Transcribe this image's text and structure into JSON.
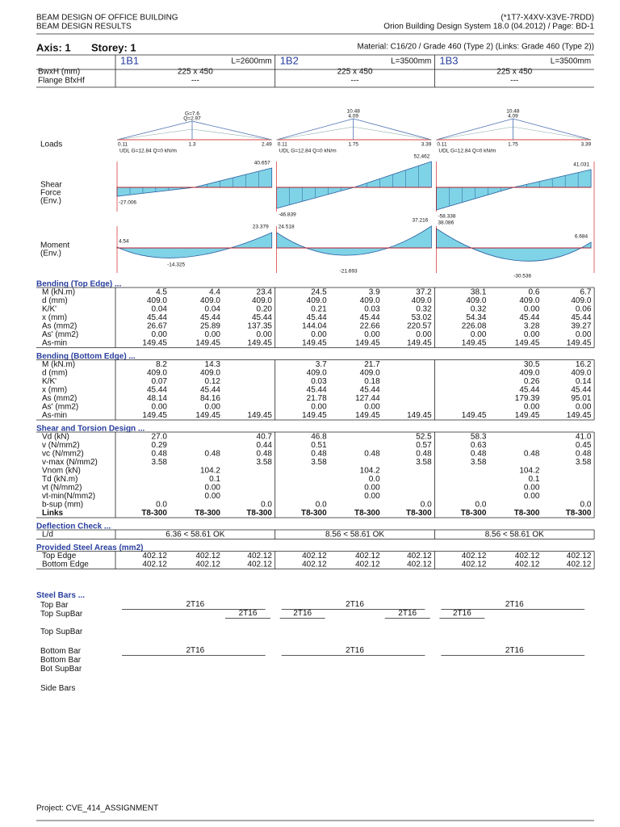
{
  "header": {
    "left": [
      "BEAM DESIGN OF OFFICE BUILDING",
      "BEAM DESIGN RESULTS"
    ],
    "right": [
      "(*1T7-X4XV-X3VE-7RDD)",
      "Orion Building Design System 18.0 (04.2012) / Page: BD-1"
    ]
  },
  "axis": "Axis: 1",
  "storey": "Storey: 1",
  "material": "Material: C16/20 / Grade 460 (Type 2) (Links: Grade 460 (Type 2))",
  "props": {
    "labels": [
      "BwxH (mm)",
      "Flange BfxHf"
    ]
  },
  "beams": [
    {
      "name": "1B1",
      "length": "L=2600mm",
      "size": "225 x 450",
      "flange": "---",
      "loads": [
        "0.11",
        "1.3",
        "2.49",
        "G=7.6",
        "Q=2.97"
      ],
      "udl": "UDL  G=12.84  Q=0 kN/m",
      "shear": [
        "-27.006",
        "40.657"
      ],
      "moment": [
        "4.54",
        "-14.325",
        "23.379"
      ]
    },
    {
      "name": "1B2",
      "length": "L=3500mm",
      "size": "225 x 450",
      "flange": "---",
      "loads": [
        "0.11",
        "1.75",
        "3.39",
        "10.48",
        "4.09"
      ],
      "udl": "UDL  G=12.84  Q=0 kN/m",
      "shear": [
        "-46.839",
        "52.462"
      ],
      "moment": [
        "24.518",
        "-21.693",
        "37.216"
      ]
    },
    {
      "name": "1B3",
      "length": "L=3500mm",
      "size": "225 x 450",
      "flange": "---",
      "loads": [
        "0.11",
        "1.75",
        "3.39",
        "10.48",
        "4.09"
      ],
      "udl": "UDL  G=12.84  Q=0 kN/m",
      "shear": [
        "-58.338",
        "41.031"
      ],
      "moment": [
        "38.086",
        "-30.536",
        "6.684"
      ]
    }
  ],
  "diagram_labels": [
    "Loads",
    "Shear",
    "Force",
    "(Env.)",
    "Moment",
    "(Env.)"
  ],
  "sections": [
    {
      "title": "Bending (Top Edge) ...",
      "rows": [
        {
          "label": "M (kN.m)",
          "cells": [
            "4.5",
            "4.4",
            "23.4",
            "24.5",
            "3.9",
            "37.2",
            "38.1",
            "0.6",
            "6.7"
          ]
        },
        {
          "label": "d  (mm)",
          "cells": [
            "409.0",
            "409.0",
            "409.0",
            "409.0",
            "409.0",
            "409.0",
            "409.0",
            "409.0",
            "409.0"
          ]
        },
        {
          "label": "K/K'",
          "cells": [
            "0.04",
            "0.04",
            "0.20",
            "0.21",
            "0.03",
            "0.32",
            "0.32",
            "0.00",
            "0.06"
          ]
        },
        {
          "label": "x  (mm)",
          "cells": [
            "45.44",
            "45.44",
            "45.44",
            "45.44",
            "45.44",
            "53.02",
            "54.34",
            "45.44",
            "45.44"
          ]
        },
        {
          "label": "As  (mm2)",
          "cells": [
            "26.67",
            "25.89",
            "137.35",
            "144.04",
            "22.66",
            "220.57",
            "226.08",
            "3.28",
            "39.27"
          ]
        },
        {
          "label": "As' (mm2)",
          "cells": [
            "0.00",
            "0.00",
            "0.00",
            "0.00",
            "0.00",
            "0.00",
            "0.00",
            "0.00",
            "0.00"
          ]
        },
        {
          "label": "As-min",
          "cells": [
            "149.45",
            "149.45",
            "149.45",
            "149.45",
            "149.45",
            "149.45",
            "149.45",
            "149.45",
            "149.45"
          ]
        }
      ]
    },
    {
      "title": "Bending (Bottom Edge) ...",
      "rows": [
        {
          "label": "M (kN.m)",
          "cells": [
            "8.2",
            "14.3",
            null,
            "3.7",
            "21.7",
            null,
            null,
            "30.5",
            "16.2"
          ]
        },
        {
          "label": "d  (mm)",
          "cells": [
            "409.0",
            "409.0",
            null,
            "409.0",
            "409.0",
            null,
            null,
            "409.0",
            "409.0"
          ]
        },
        {
          "label": "K/K'",
          "cells": [
            "0.07",
            "0.12",
            null,
            "0.03",
            "0.18",
            null,
            null,
            "0.26",
            "0.14"
          ]
        },
        {
          "label": "x  (mm)",
          "cells": [
            "45.44",
            "45.44",
            null,
            "45.44",
            "45.44",
            null,
            null,
            "45.44",
            "45.44"
          ]
        },
        {
          "label": "As  (mm2)",
          "cells": [
            "48.14",
            "84.16",
            null,
            "21.78",
            "127.44",
            null,
            null,
            "179.39",
            "95.01"
          ]
        },
        {
          "label": "As' (mm2)",
          "cells": [
            "0.00",
            "0.00",
            null,
            "0.00",
            "0.00",
            null,
            null,
            "0.00",
            "0.00"
          ]
        },
        {
          "label": "As-min",
          "cells": [
            "149.45",
            "149.45",
            "149.45",
            "149.45",
            "149.45",
            "149.45",
            "149.45",
            "149.45",
            "149.45"
          ]
        }
      ]
    },
    {
      "title": "Shear and Torsion Design ...",
      "rows": [
        {
          "label": "Vd  (kN)",
          "cells": [
            "27.0",
            null,
            "40.7",
            "46.8",
            null,
            "52.5",
            "58.3",
            null,
            "41.0"
          ]
        },
        {
          "label": "v  (N/mm2)",
          "cells": [
            "0.29",
            null,
            "0.44",
            "0.51",
            null,
            "0.57",
            "0.63",
            null,
            "0.45"
          ]
        },
        {
          "label": "vc  (N/mm2)",
          "cells": [
            "0.48",
            "0.48",
            "0.48",
            "0.48",
            "0.48",
            "0.48",
            "0.48",
            "0.48",
            "0.48"
          ]
        },
        {
          "label": "v-max (N/mm2)",
          "cells": [
            "3.58",
            null,
            "3.58",
            "3.58",
            null,
            "3.58",
            "3.58",
            null,
            "3.58"
          ]
        },
        {
          "label": "Vnom (kN)",
          "cells": [
            null,
            "104.2",
            null,
            null,
            "104.2",
            null,
            null,
            "104.2",
            null
          ]
        },
        {
          "label": "Td  (kN.m)",
          "cells": [
            null,
            "0.1",
            null,
            null,
            "0.0",
            null,
            null,
            "0.1",
            null
          ]
        },
        {
          "label": "vt  (N/mm2)",
          "cells": [
            null,
            "0.00",
            null,
            null,
            "0.00",
            null,
            null,
            "0.00",
            null
          ]
        },
        {
          "label": "vt-min(N/mm2)",
          "cells": [
            null,
            "0.00",
            null,
            null,
            "0.00",
            null,
            null,
            "0.00",
            null
          ]
        },
        {
          "label": "b-sup (mm)",
          "cells": [
            "0.0",
            null,
            "0.0",
            "0.0",
            null,
            "0.0",
            "0.0",
            null,
            "0.0"
          ]
        },
        {
          "label": "Links",
          "bold": true,
          "cells": [
            "T8-300",
            "T8-300",
            "T8-300",
            "T8-300",
            "T8-300",
            "T8-300",
            "T8-300",
            "T8-300",
            "T8-300"
          ]
        }
      ]
    },
    {
      "title": "Deflection Check ...",
      "rows": [
        {
          "label": "L/d",
          "cells": [
            "6.36 < 58.61 OK",
            "8.56 < 58.61 OK",
            "8.56 < 58.61 OK"
          ]
        }
      ]
    },
    {
      "title": "Provided Steel Areas (mm2)",
      "rows": [
        {
          "label": "Top Edge",
          "cells": [
            "402.12",
            "402.12",
            "402.12",
            "402.12",
            "402.12",
            "402.12",
            "402.12",
            "402.12",
            "402.12"
          ]
        },
        {
          "label": "Bottom Edge",
          "cells": [
            "402.12",
            "402.12",
            "402.12",
            "402.12",
            "402.12",
            "402.12",
            "402.12",
            "402.12",
            "402.12"
          ]
        }
      ]
    }
  ],
  "steel_bars": {
    "title": "Steel Bars ...",
    "rows": [
      {
        "label": "Top Bar",
        "cells": [
          "2T16",
          "2T16",
          "2T16"
        ]
      },
      {
        "label": "Top SupBar",
        "cells": [
          null,
          null,
          "2T16",
          "2T16",
          null,
          "2T16",
          "2T16",
          null,
          null
        ]
      },
      {
        "label": "Top SupBar"
      },
      {
        "label": "Bottom Bar",
        "cells": [
          "2T16",
          "2T16",
          "2T16"
        ]
      },
      {
        "label": "Bottom Bar"
      },
      {
        "label": "Bot SupBar"
      },
      {
        "label": "Side Bars"
      }
    ]
  },
  "footer": "Project: CVE_414_ASSIGNMENT"
}
